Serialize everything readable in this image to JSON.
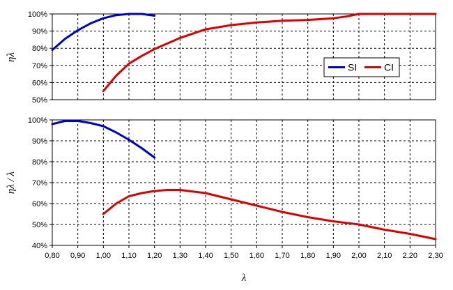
{
  "chart_data": [
    {
      "type": "line",
      "ylabel": "ηλ",
      "xlim": [
        0.8,
        2.3
      ],
      "ylim": [
        50,
        100
      ],
      "yticks": [
        "50%",
        "60%",
        "70%",
        "80%",
        "90%",
        "100%"
      ],
      "x_ticks_shown": false,
      "grid": true,
      "legend_position": "right",
      "series": [
        {
          "name": "SI",
          "color": "#0000cc",
          "x": [
            0.8,
            0.85,
            0.9,
            0.95,
            1.0,
            1.05,
            1.1,
            1.15,
            1.2
          ],
          "y": [
            79,
            85.5,
            90.5,
            94.5,
            97.5,
            99.3,
            100,
            100,
            99
          ]
        },
        {
          "name": "CI",
          "color": "#dd0000",
          "x": [
            1.0,
            1.05,
            1.1,
            1.15,
            1.2,
            1.3,
            1.4,
            1.5,
            1.6,
            1.7,
            1.8,
            1.9,
            1.95,
            2.0,
            2.1,
            2.2,
            2.3
          ],
          "y": [
            55,
            64,
            71,
            75.5,
            79.5,
            86,
            91,
            93.5,
            95,
            96,
            96.5,
            97.5,
            98.5,
            100,
            100,
            100,
            100
          ]
        }
      ]
    },
    {
      "type": "line",
      "xlabel": "λ",
      "ylabel": "ηλ / λ",
      "xlim": [
        0.8,
        2.3
      ],
      "ylim": [
        40,
        100
      ],
      "yticks": [
        "40%",
        "50%",
        "60%",
        "70%",
        "80%",
        "90%",
        "100%"
      ],
      "xticks": [
        "0,80",
        "0,90",
        "1,00",
        "1,10",
        "1,20",
        "1,30",
        "1,40",
        "1,50",
        "1,60",
        "1,70",
        "1,80",
        "1,90",
        "2,00",
        "2,10",
        "2,20",
        "2,30"
      ],
      "grid": true,
      "series": [
        {
          "color": "#0000cc",
          "x": [
            0.8,
            0.85,
            0.9,
            0.95,
            1.0,
            1.05,
            1.1,
            1.15,
            1.2
          ],
          "y": [
            98,
            99.5,
            99.5,
            98.5,
            97,
            94,
            90.5,
            86.5,
            82
          ]
        },
        {
          "color": "#dd0000",
          "x": [
            1.0,
            1.05,
            1.1,
            1.15,
            1.2,
            1.25,
            1.3,
            1.4,
            1.5,
            1.6,
            1.7,
            1.8,
            1.9,
            2.0,
            2.1,
            2.2,
            2.3
          ],
          "y": [
            55,
            60,
            63.5,
            65,
            66,
            66.5,
            66.5,
            65,
            62,
            59,
            56,
            53.5,
            51.5,
            50,
            47.5,
            45.5,
            43
          ]
        }
      ]
    }
  ]
}
